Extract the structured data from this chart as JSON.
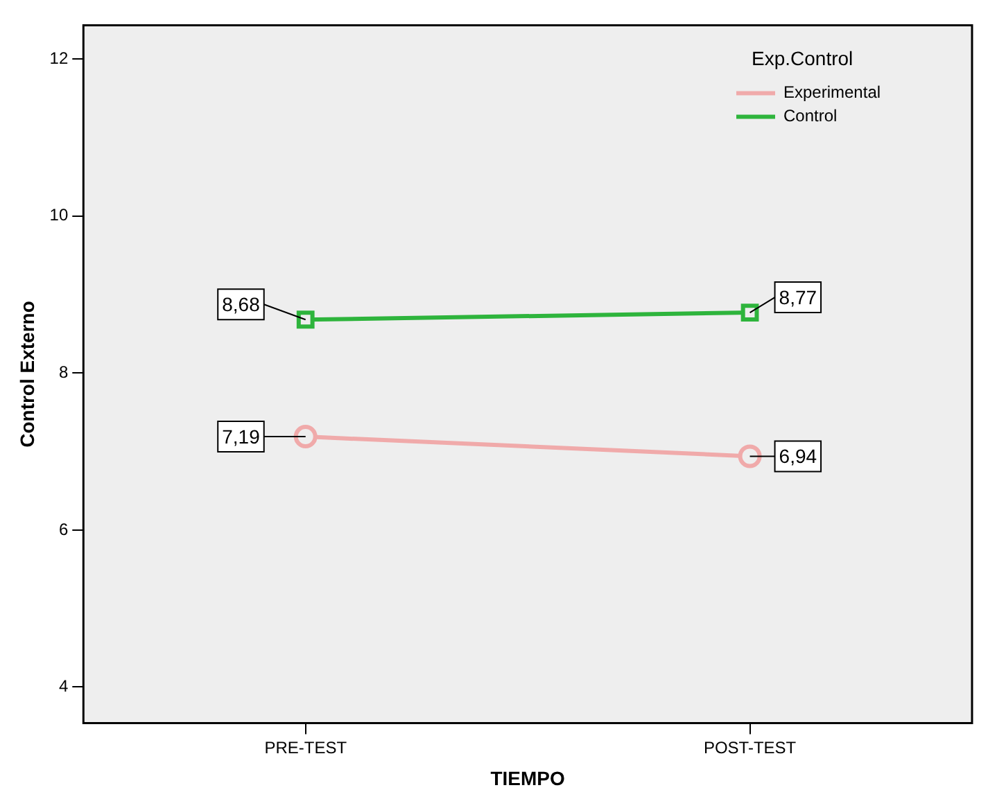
{
  "chart_data": {
    "type": "line",
    "xlabel": "TIEMPO",
    "ylabel": "Control Externo",
    "legend_title": "Exp.Control",
    "categories": [
      "PRE-TEST",
      "POST-TEST"
    ],
    "series": [
      {
        "name": "Experimental",
        "color": "#f0aaaa",
        "marker": "circle",
        "values": [
          7.19,
          6.94
        ],
        "value_labels": [
          "7,19",
          "6,94"
        ]
      },
      {
        "name": "Control",
        "color": "#2eb43c",
        "marker": "square",
        "values": [
          8.68,
          8.77
        ],
        "value_labels": [
          "8,68",
          "8,77"
        ]
      }
    ],
    "ylim": [
      3.54,
      12.43
    ],
    "yticks": [
      4,
      6,
      8,
      10,
      12
    ],
    "grid": false,
    "legend": "top right"
  }
}
